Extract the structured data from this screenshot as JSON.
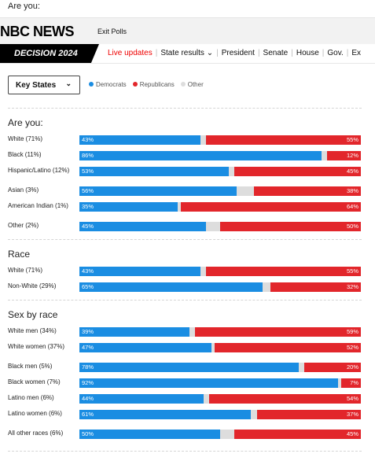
{
  "page_top": {
    "text": "Are you:"
  },
  "header": {
    "logo": "NBC NEWS",
    "nav_link": "Exit Polls"
  },
  "nav": {
    "decision_label": "DECISION 2024",
    "items": [
      "Live updates",
      "State results ⌄",
      "President",
      "Senate",
      "House",
      "Gov.",
      "Ex"
    ]
  },
  "controls": {
    "selected_view": "Key States",
    "legend": [
      {
        "label": "Democrats",
        "color": "#1a8de2"
      },
      {
        "label": "Republicans",
        "color": "#e2262b"
      },
      {
        "label": "Other",
        "color": "#dddddd"
      }
    ]
  },
  "chart_data": {
    "type": "bar",
    "orientation": "horizontal stacked",
    "series_colors": {
      "dem": "#1a8de2",
      "rep": "#e2262b",
      "other": "#dddddd"
    },
    "sections": [
      {
        "title": "Are you:",
        "rows": [
          {
            "label": "White (71%)",
            "dem": 43,
            "rep": 55
          },
          {
            "label": "Black (11%)",
            "dem": 86,
            "rep": 12
          },
          {
            "label": "Hispanic/Latino (12%)",
            "dem": 53,
            "rep": 45
          },
          {
            "label": "Asian (3%)",
            "dem": 56,
            "rep": 38
          },
          {
            "label": "American Indian (1%)",
            "dem": 35,
            "rep": 64
          },
          {
            "label": "Other (2%)",
            "dem": 45,
            "rep": 50
          }
        ]
      },
      {
        "title": "Race",
        "rows": [
          {
            "label": "White (71%)",
            "dem": 43,
            "rep": 55
          },
          {
            "label": "Non-White (29%)",
            "dem": 65,
            "rep": 32
          }
        ]
      },
      {
        "title": "Sex by race",
        "rows": [
          {
            "label": "White men (34%)",
            "dem": 39,
            "rep": 59
          },
          {
            "label": "White women (37%)",
            "dem": 47,
            "rep": 52
          },
          {
            "label": "Black men (5%)",
            "dem": 78,
            "rep": 20
          },
          {
            "label": "Black women (7%)",
            "dem": 92,
            "rep": 7
          },
          {
            "label": "Latino men (6%)",
            "dem": 44,
            "rep": 54
          },
          {
            "label": "Latino women (6%)",
            "dem": 61,
            "rep": 37
          },
          {
            "label": "All other races (6%)",
            "dem": 50,
            "rep": 45
          }
        ]
      }
    ]
  }
}
